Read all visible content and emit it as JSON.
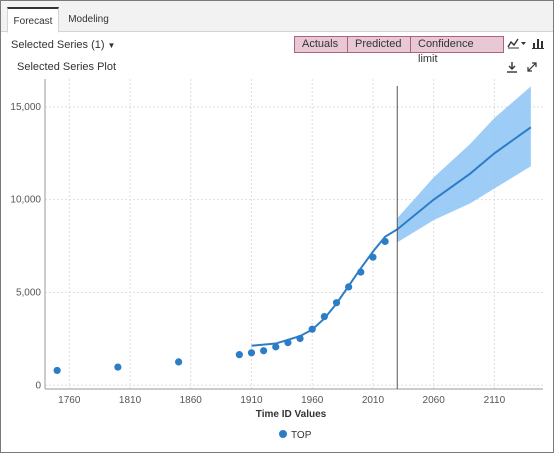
{
  "tabs": [
    {
      "label": "Forecast",
      "active": true
    },
    {
      "label": "Modeling",
      "active": false
    }
  ],
  "series_selector": {
    "label": "Selected Series (1)",
    "caret": "▼"
  },
  "toggle_buttons": [
    "Actuals",
    "Predicted",
    "Confidence limit"
  ],
  "plot_title": "Selected Series Plot",
  "icons": {
    "chart_type": "line-chart-icon",
    "bar": "bar-chart-icon",
    "download": "download-icon",
    "expand": "expand-icon"
  },
  "colors": {
    "series": "#2d7cc6",
    "confidence": "#8cc4f6",
    "toggle_bg": "#e8c8d4",
    "toggle_border": "#b06080"
  },
  "chart_data": {
    "type": "line",
    "xlabel": "Time ID Values",
    "xlim": [
      1740,
      2150
    ],
    "ylim": [
      -200,
      16500
    ],
    "x_ticks": [
      1760,
      1810,
      1860,
      1910,
      1960,
      2010,
      2060,
      2110
    ],
    "y_ticks": [
      0,
      5000,
      10000,
      15000
    ],
    "y_tick_labels": [
      "0",
      "5,000",
      "10,000",
      "15,000"
    ],
    "forecast_start": 2030,
    "legend": [
      {
        "name": "TOP",
        "color": "#2d7cc6"
      }
    ],
    "actuals": [
      {
        "x": 1750,
        "y": 800
      },
      {
        "x": 1800,
        "y": 980
      },
      {
        "x": 1850,
        "y": 1260
      },
      {
        "x": 1900,
        "y": 1650
      },
      {
        "x": 1910,
        "y": 1750
      },
      {
        "x": 1920,
        "y": 1860
      },
      {
        "x": 1930,
        "y": 2070
      },
      {
        "x": 1940,
        "y": 2300
      },
      {
        "x": 1950,
        "y": 2520
      },
      {
        "x": 1960,
        "y": 3020
      },
      {
        "x": 1970,
        "y": 3700
      },
      {
        "x": 1980,
        "y": 4450
      },
      {
        "x": 1990,
        "y": 5300
      },
      {
        "x": 2000,
        "y": 6100
      },
      {
        "x": 2010,
        "y": 6900
      },
      {
        "x": 2020,
        "y": 7750
      }
    ],
    "predicted": [
      {
        "x": 1910,
        "y": 2130
      },
      {
        "x": 1930,
        "y": 2250
      },
      {
        "x": 1950,
        "y": 2650
      },
      {
        "x": 1960,
        "y": 3000
      },
      {
        "x": 1970,
        "y": 3600
      },
      {
        "x": 1980,
        "y": 4400
      },
      {
        "x": 1990,
        "y": 5350
      },
      {
        "x": 2000,
        "y": 6300
      },
      {
        "x": 2010,
        "y": 7200
      },
      {
        "x": 2020,
        "y": 8000
      },
      {
        "x": 2030,
        "y": 8400
      },
      {
        "x": 2060,
        "y": 10000
      },
      {
        "x": 2090,
        "y": 11400
      },
      {
        "x": 2110,
        "y": 12500
      },
      {
        "x": 2140,
        "y": 13900
      }
    ],
    "confidence_band": [
      {
        "x": 2030,
        "lower": 7700,
        "upper": 9000
      },
      {
        "x": 2060,
        "lower": 8900,
        "upper": 11200
      },
      {
        "x": 2090,
        "lower": 9800,
        "upper": 13000
      },
      {
        "x": 2110,
        "lower": 10600,
        "upper": 14400
      },
      {
        "x": 2140,
        "lower": 11800,
        "upper": 16100
      }
    ]
  }
}
